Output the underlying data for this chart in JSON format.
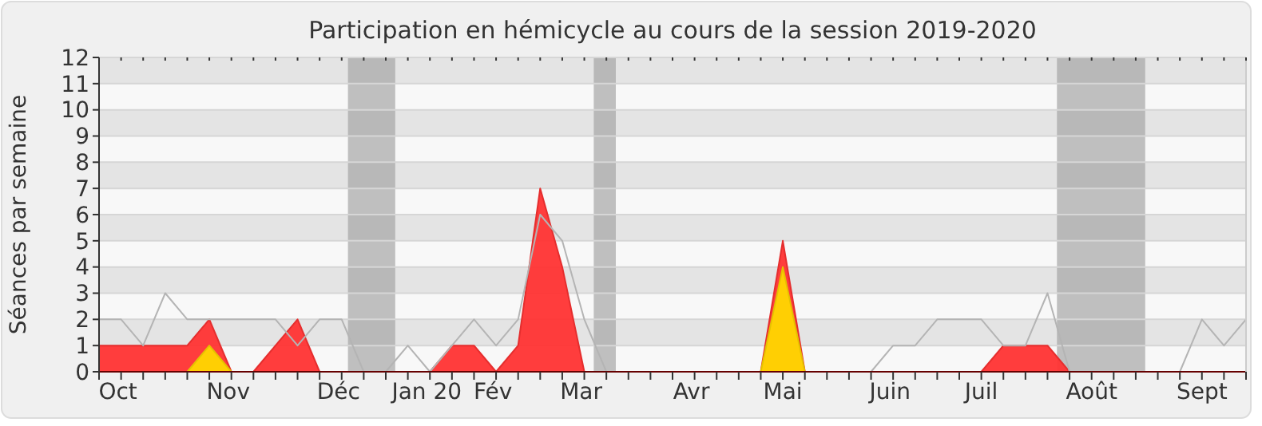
{
  "chart_data": {
    "type": "area",
    "title": "Participation en hémicycle au cours de la session 2019-2020",
    "ylabel": "Séances par semaine",
    "x": [
      "2019-09-30",
      "2019-10-07",
      "2019-10-14",
      "2019-10-21",
      "2019-10-28",
      "2019-11-04",
      "2019-11-11",
      "2019-11-18",
      "2019-11-25",
      "2019-12-02",
      "2019-12-09",
      "2019-12-16",
      "2019-12-23",
      "2019-12-30",
      "2020-01-06",
      "2020-01-13",
      "2020-01-20",
      "2020-01-27",
      "2020-02-03",
      "2020-02-10",
      "2020-02-17",
      "2020-02-24",
      "2020-03-02",
      "2020-03-09",
      "2020-03-16",
      "2020-03-23",
      "2020-03-30",
      "2020-04-06",
      "2020-04-13",
      "2020-04-20",
      "2020-04-27",
      "2020-05-04",
      "2020-05-11",
      "2020-05-18",
      "2020-05-25",
      "2020-06-01",
      "2020-06-08",
      "2020-06-15",
      "2020-06-22",
      "2020-06-29",
      "2020-07-06",
      "2020-07-13",
      "2020-07-20",
      "2020-07-27",
      "2020-08-03",
      "2020-08-10",
      "2020-08-17",
      "2020-08-24",
      "2020-08-31",
      "2020-09-07",
      "2020-09-14",
      "2020-09-21",
      "2020-09-28"
    ],
    "series": [
      {
        "type": "line",
        "color": "#b4b4b4",
        "values": [
          2,
          2,
          1,
          3,
          2,
          2,
          2,
          2,
          2,
          1,
          2,
          2,
          0,
          0,
          1,
          0,
          1,
          2,
          1,
          2,
          6,
          5,
          2,
          0,
          0,
          0,
          0,
          0,
          0,
          0,
          0,
          0,
          0,
          0,
          0,
          0,
          1,
          1,
          2,
          2,
          2,
          1,
          1,
          3,
          0,
          0,
          0,
          0,
          0,
          0,
          2,
          1,
          2
        ]
      },
      {
        "color": "#ff3333",
        "values": [
          1,
          1,
          1,
          1,
          1,
          2,
          0,
          0,
          1,
          2,
          0,
          0,
          0,
          0,
          0,
          0,
          1,
          1,
          0,
          1,
          7,
          4,
          0,
          0,
          0,
          0,
          0,
          0,
          0,
          0,
          0,
          5,
          0,
          0,
          0,
          0,
          0,
          0,
          0,
          0,
          0,
          1,
          1,
          1,
          0,
          0,
          0,
          0,
          0,
          0,
          0,
          0,
          0
        ]
      },
      {
        "color": "#ffd700",
        "values": [
          0,
          0,
          0,
          0,
          0,
          1,
          0,
          0,
          0,
          0,
          0,
          0,
          0,
          0,
          0,
          0,
          0,
          0,
          0,
          0,
          0,
          0,
          0,
          0,
          0,
          0,
          0,
          0,
          0,
          0,
          0,
          4,
          0,
          0,
          0,
          0,
          0,
          0,
          0,
          0,
          0,
          0,
          0,
          0,
          0,
          0,
          0,
          0,
          0,
          0,
          0,
          0,
          0
        ]
      }
    ],
    "xlim": [
      "2019-09-30",
      "2020-09-28"
    ],
    "xticks": [
      {
        "value": "2019-09-30",
        "label": null
      },
      {
        "value": "2019-10-07",
        "label": null
      },
      {
        "value": "2019-10-14",
        "label": null
      },
      {
        "value": "2019-10-21",
        "label": null
      },
      {
        "value": "2019-10-28",
        "label": null
      },
      {
        "value": "2019-11-04",
        "label": null
      },
      {
        "value": "2019-11-11",
        "label": null
      },
      {
        "value": "2019-11-18",
        "label": null
      },
      {
        "value": "2019-11-25",
        "label": null
      },
      {
        "value": "2019-12-02",
        "label": null
      },
      {
        "value": "2019-12-09",
        "label": null
      },
      {
        "value": "2019-12-16",
        "label": null
      },
      {
        "value": "2019-12-23",
        "label": null
      },
      {
        "value": "2019-12-30",
        "label": null
      },
      {
        "value": "2020-01-06",
        "label": null
      },
      {
        "value": "2020-01-13",
        "label": null
      },
      {
        "value": "2020-01-20",
        "label": null
      },
      {
        "value": "2020-01-27",
        "label": null
      },
      {
        "value": "2020-02-03",
        "label": null
      },
      {
        "value": "2020-02-10",
        "label": null
      },
      {
        "value": "2020-02-17",
        "label": null
      },
      {
        "value": "2020-02-24",
        "label": null
      },
      {
        "value": "2020-03-02",
        "label": null
      },
      {
        "value": "2020-03-09",
        "label": null
      },
      {
        "value": "2020-03-16",
        "label": null
      },
      {
        "value": "2020-03-23",
        "label": null
      },
      {
        "value": "2020-03-30",
        "label": null
      },
      {
        "value": "2020-04-06",
        "label": null
      },
      {
        "value": "2020-04-13",
        "label": null
      },
      {
        "value": "2020-04-20",
        "label": null
      },
      {
        "value": "2020-04-27",
        "label": null
      },
      {
        "value": "2020-05-04",
        "label": null
      },
      {
        "value": "2020-05-11",
        "label": null
      },
      {
        "value": "2020-05-18",
        "label": null
      },
      {
        "value": "2020-05-25",
        "label": null
      },
      {
        "value": "2020-06-01",
        "label": null
      },
      {
        "value": "2020-06-08",
        "label": null
      },
      {
        "value": "2020-06-15",
        "label": null
      },
      {
        "value": "2020-06-22",
        "label": null
      },
      {
        "value": "2020-06-29",
        "label": null
      },
      {
        "value": "2020-07-06",
        "label": null
      },
      {
        "value": "2020-07-13",
        "label": null
      },
      {
        "value": "2020-07-20",
        "label": null
      },
      {
        "value": "2020-07-27",
        "label": null
      },
      {
        "value": "2020-08-03",
        "label": null
      },
      {
        "value": "2020-08-10",
        "label": null
      },
      {
        "value": "2020-08-17",
        "label": null
      },
      {
        "value": "2020-08-24",
        "label": null
      },
      {
        "value": "2020-08-31",
        "label": null
      },
      {
        "value": "2020-09-07",
        "label": null
      },
      {
        "value": "2020-09-14",
        "label": null
      },
      {
        "value": "2020-09-21",
        "label": null
      },
      {
        "value": "2020-09-28",
        "label": null
      },
      {
        "value": "2019-10-06",
        "label": "Oct"
      },
      {
        "value": "2019-11-10",
        "label": "Nov"
      },
      {
        "value": "2019-12-15",
        "label": "Déc"
      },
      {
        "value": "2020-01-12",
        "label": "Jan 20"
      },
      {
        "value": "2020-02-02",
        "label": "Fév"
      },
      {
        "value": "2020-03-01",
        "label": "Mar"
      },
      {
        "value": "2020-04-05",
        "label": "Avr"
      },
      {
        "value": "2020-05-04",
        "label": "Mai"
      },
      {
        "value": "2020-06-07",
        "label": "Juin"
      },
      {
        "value": "2020-07-06",
        "label": "Juil"
      },
      {
        "value": "2020-08-10",
        "label": "Août"
      },
      {
        "value": "2020-09-14",
        "label": "Sept"
      }
    ],
    "ylim": [
      0,
      12
    ],
    "yticks": [
      0,
      1,
      2,
      3,
      4,
      5,
      6,
      7,
      8,
      9,
      10,
      11,
      12
    ],
    "grid": "y",
    "bands": [
      {
        "axis": "x",
        "from": "2019-12-18",
        "to": "2020-01-02",
        "color": "#a0a0a0"
      },
      {
        "axis": "x",
        "from": "2020-03-05",
        "to": "2020-03-12",
        "color": "#a0a0a0"
      },
      {
        "axis": "x",
        "from": "2020-07-30",
        "to": "2020-08-27",
        "color": "#a0a0a0"
      }
    ]
  }
}
